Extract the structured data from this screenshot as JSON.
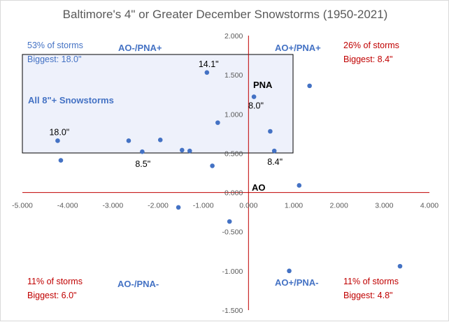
{
  "chart_data": {
    "type": "scatter",
    "title": "Baltimore's 4\" or Greater December Snowstorms (1950-2021)",
    "xlabel": "",
    "ylabel": "",
    "xlim": [
      -5,
      4
    ],
    "ylim": [
      -1.5,
      2
    ],
    "x_ticks": [
      "-5.000",
      "-4.000",
      "-3.000",
      "-2.000",
      "-1.000",
      "0.000",
      "1.000",
      "2.000",
      "3.000",
      "4.000"
    ],
    "y_ticks": [
      "2.000",
      "1.500",
      "1.000",
      "0.500",
      "0.000",
      "-0.500",
      "-1.000",
      "-1.500"
    ],
    "axis_labels": {
      "x_axis": "AO",
      "y_axis": "PNA"
    },
    "grid": false,
    "point_color": "#4472c4",
    "axis_color": "#c00000",
    "series": [
      {
        "x": [
          -4.22,
          -4.15,
          -2.65,
          -2.35,
          -1.95,
          -1.47,
          -1.3,
          -0.92,
          -0.8,
          -0.68,
          -0.42,
          -1.55,
          0.12,
          0.48,
          0.57,
          1.12,
          1.35,
          0.9,
          3.35
        ],
        "y": [
          0.66,
          0.41,
          0.66,
          0.52,
          0.67,
          0.54,
          0.53,
          1.53,
          0.34,
          0.89,
          -0.37,
          -0.19,
          1.22,
          0.78,
          0.53,
          0.09,
          1.36,
          -1.0,
          -0.94
        ]
      }
    ],
    "point_labels": [
      {
        "text": "18.0\"",
        "x": -4.22,
        "y": 0.66
      },
      {
        "text": "8.5\"",
        "x": -2.35,
        "y": 0.52
      },
      {
        "text": "14.1\"",
        "x": -0.92,
        "y": 1.53
      },
      {
        "text": "8.0\"",
        "x": 0.12,
        "y": 1.22
      },
      {
        "text": "8.4\"",
        "x": 0.57,
        "y": 0.53
      }
    ],
    "highlight_box": {
      "x_range": [
        -5,
        1
      ],
      "y_range": [
        0.5,
        1.75
      ],
      "label": "All 8\"+ Snowstorms"
    },
    "quadrants": {
      "top_left": {
        "name": "AO-/PNA+",
        "share": "53% of storms",
        "biggest": "Biggest: 18.0\""
      },
      "top_right": {
        "name": "AO+/PNA+",
        "share": "26% of storms",
        "biggest": "Biggest: 8.4\""
      },
      "bottom_left": {
        "name": "AO-/PNA-",
        "share": "11% of storms",
        "biggest": "Biggest: 6.0\""
      },
      "bottom_right": {
        "name": "AO+/PNA-",
        "share": "11% of storms",
        "biggest": "Biggest: 4.8\""
      }
    }
  }
}
